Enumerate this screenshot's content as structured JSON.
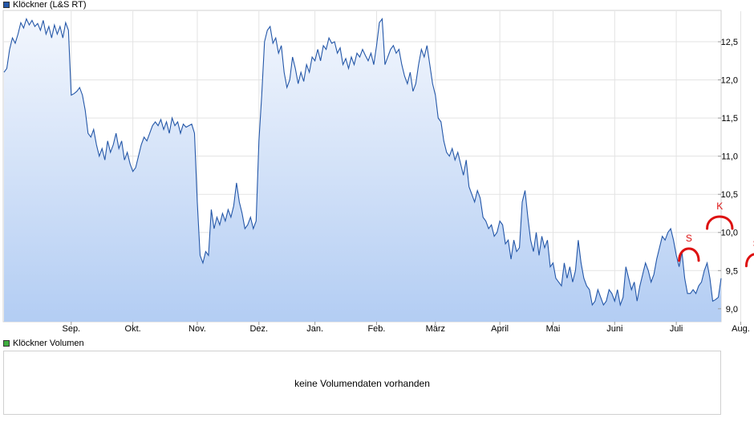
{
  "legend": {
    "price_label": "Klöckner (L&S RT)",
    "price_color": "#2457a8",
    "volume_label": "Klöckner Volumen",
    "volume_color": "#3fae3f"
  },
  "volume_panel": {
    "message": "keine Volumendaten vorhanden"
  },
  "chart_data": {
    "type": "area",
    "title": "",
    "xlabel": "",
    "ylabel": "",
    "ylim": [
      8.83,
      12.9
    ],
    "yticks": [
      9.0,
      9.5,
      10.0,
      10.5,
      11.0,
      11.5,
      12.0,
      12.5
    ],
    "ytick_labels": [
      "9,0",
      "9,5",
      "10,0",
      "10,5",
      "11,0",
      "11,5",
      "12,0",
      "12,5"
    ],
    "xticks": [
      {
        "label": "Sep.",
        "i": 24
      },
      {
        "label": "Okt.",
        "i": 46
      },
      {
        "label": "Nov.",
        "i": 69
      },
      {
        "label": "Dez.",
        "i": 91
      },
      {
        "label": "Jan.",
        "i": 111
      },
      {
        "label": "Feb.",
        "i": 133
      },
      {
        "label": "März",
        "i": 154
      },
      {
        "label": "April",
        "i": 177
      },
      {
        "label": "Mai",
        "i": 196
      },
      {
        "label": "Juni",
        "i": 218
      },
      {
        "label": "Juli",
        "i": 240
      },
      {
        "label": "Aug.",
        "i": 263
      }
    ],
    "grid": true,
    "series": [
      {
        "name": "Klöckner (L&S RT)",
        "color": "#2457a8",
        "values": [
          12.1,
          12.15,
          12.4,
          12.55,
          12.48,
          12.6,
          12.75,
          12.68,
          12.8,
          12.72,
          12.78,
          12.7,
          12.74,
          12.65,
          12.78,
          12.6,
          12.7,
          12.55,
          12.72,
          12.6,
          12.7,
          12.55,
          12.75,
          12.65,
          11.8,
          11.82,
          11.85,
          11.9,
          11.8,
          11.6,
          11.3,
          11.25,
          11.35,
          11.15,
          11.0,
          11.1,
          10.95,
          11.2,
          11.05,
          11.15,
          11.3,
          11.1,
          11.2,
          10.95,
          11.05,
          10.9,
          10.8,
          10.85,
          11.0,
          11.15,
          11.25,
          11.2,
          11.3,
          11.4,
          11.45,
          11.4,
          11.48,
          11.35,
          11.45,
          11.3,
          11.5,
          11.4,
          11.45,
          11.3,
          11.42,
          11.38,
          11.4,
          11.42,
          11.3,
          10.4,
          9.7,
          9.6,
          9.75,
          9.7,
          10.3,
          10.05,
          10.2,
          10.1,
          10.25,
          10.15,
          10.3,
          10.2,
          10.35,
          10.65,
          10.4,
          10.25,
          10.05,
          10.1,
          10.2,
          10.05,
          10.15,
          11.2,
          11.8,
          12.5,
          12.65,
          12.7,
          12.48,
          12.55,
          12.35,
          12.45,
          12.1,
          11.9,
          12.0,
          12.3,
          12.15,
          11.95,
          12.1,
          11.98,
          12.2,
          12.1,
          12.3,
          12.25,
          12.4,
          12.25,
          12.45,
          12.4,
          12.55,
          12.48,
          12.5,
          12.35,
          12.42,
          12.2,
          12.28,
          12.15,
          12.3,
          12.2,
          12.35,
          12.3,
          12.4,
          12.32,
          12.25,
          12.35,
          12.2,
          12.45,
          12.75,
          12.8,
          12.2,
          12.3,
          12.4,
          12.45,
          12.35,
          12.4,
          12.2,
          12.05,
          11.95,
          12.1,
          11.85,
          11.95,
          12.2,
          12.4,
          12.3,
          12.45,
          12.2,
          11.95,
          11.8,
          11.5,
          11.45,
          11.2,
          11.05,
          11.0,
          11.1,
          10.95,
          11.05,
          10.9,
          10.75,
          10.95,
          10.6,
          10.5,
          10.4,
          10.55,
          10.45,
          10.2,
          10.15,
          10.05,
          10.1,
          9.95,
          10.0,
          10.15,
          10.1,
          9.85,
          9.9,
          9.65,
          9.9,
          9.75,
          9.8,
          10.4,
          10.55,
          10.2,
          9.9,
          9.75,
          10.0,
          9.7,
          9.95,
          9.8,
          9.9,
          9.55,
          9.6,
          9.4,
          9.35,
          9.3,
          9.6,
          9.4,
          9.55,
          9.35,
          9.5,
          9.9,
          9.6,
          9.4,
          9.3,
          9.25,
          9.05,
          9.1,
          9.25,
          9.15,
          9.05,
          9.1,
          9.25,
          9.2,
          9.1,
          9.25,
          9.05,
          9.15,
          9.55,
          9.4,
          9.25,
          9.35,
          9.1,
          9.3,
          9.45,
          9.6,
          9.5,
          9.35,
          9.45,
          9.65,
          9.8,
          9.95,
          9.9,
          10.0,
          10.05,
          9.9,
          9.7,
          9.55,
          9.75,
          9.4,
          9.2,
          9.2,
          9.25,
          9.2,
          9.3,
          9.35,
          9.5,
          9.6,
          9.4,
          9.1,
          9.12,
          9.15,
          9.4
        ]
      }
    ],
    "annotations": [
      {
        "type": "arc",
        "label": "S",
        "i0": 241,
        "i1": 248,
        "y": 9.63,
        "color": "#dd1111"
      },
      {
        "type": "arc",
        "label": "K",
        "i0": 251,
        "i1": 260,
        "y": 10.05,
        "color": "#dd1111"
      },
      {
        "type": "arc",
        "label": "S",
        "i0": 265,
        "i1": 272,
        "y": 9.56,
        "color": "#dd1111"
      }
    ]
  }
}
